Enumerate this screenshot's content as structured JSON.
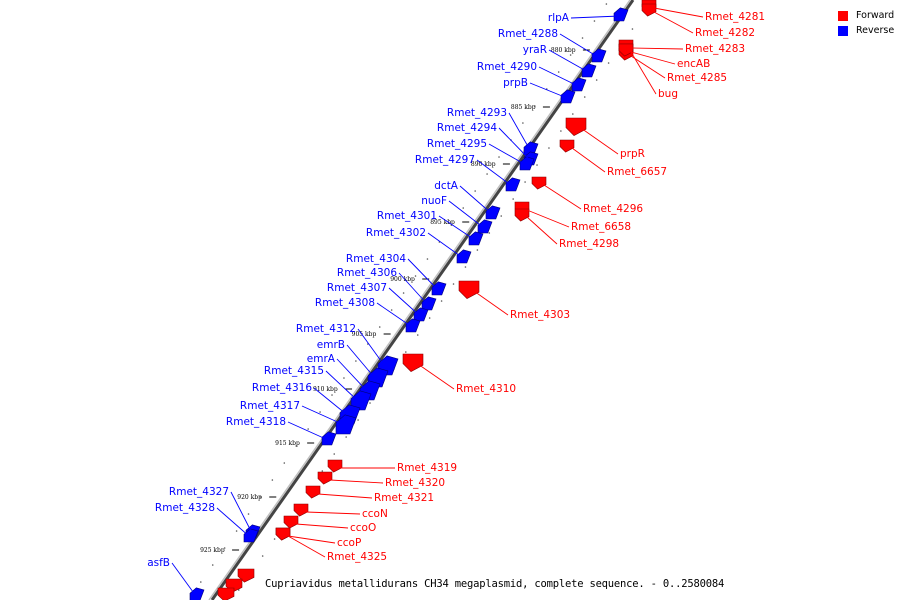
{
  "legend": {
    "forward_label": "Forward",
    "reverse_label": "Reverse",
    "forward_color": "#ff0000",
    "reverse_color": "#0000ff"
  },
  "footer": "Cupriavidus metallidurans CH34 megaplasmid, complete sequence. - 0..2580084",
  "ticks": [
    "880 kbp",
    "885 kbp",
    "890 kbp",
    "895 kbp",
    "900 kbp",
    "905 kbp",
    "910 kbp",
    "915 kbp",
    "920 kbp",
    "925 kbp"
  ],
  "reverse_genes": [
    "rlpA",
    "Rmet_4288",
    "yraR",
    "Rmet_4290",
    "prpB",
    "Rmet_4293",
    "Rmet_4294",
    "Rmet_4295",
    "Rmet_4297",
    "dctA",
    "nuoF",
    "Rmet_4301",
    "Rmet_4302",
    "Rmet_4304",
    "Rmet_4306",
    "Rmet_4307",
    "Rmet_4308",
    "Rmet_4312",
    "emrB",
    "emrA",
    "Rmet_4315",
    "Rmet_4316",
    "Rmet_4317",
    "Rmet_4318",
    "Rmet_4327",
    "Rmet_4328",
    "asfB"
  ],
  "forward_genes": [
    "Rmet_4281",
    "Rmet_4282",
    "Rmet_4283",
    "encAB",
    "Rmet_4285",
    "bug",
    "prpR",
    "Rmet_6657",
    "Rmet_4296",
    "Rmet_6658",
    "Rmet_4298",
    "Rmet_4303",
    "Rmet_4310",
    "Rmet_4319",
    "Rmet_4320",
    "Rmet_4321",
    "ccoN",
    "ccoO",
    "ccoP",
    "Rmet_4325"
  ]
}
